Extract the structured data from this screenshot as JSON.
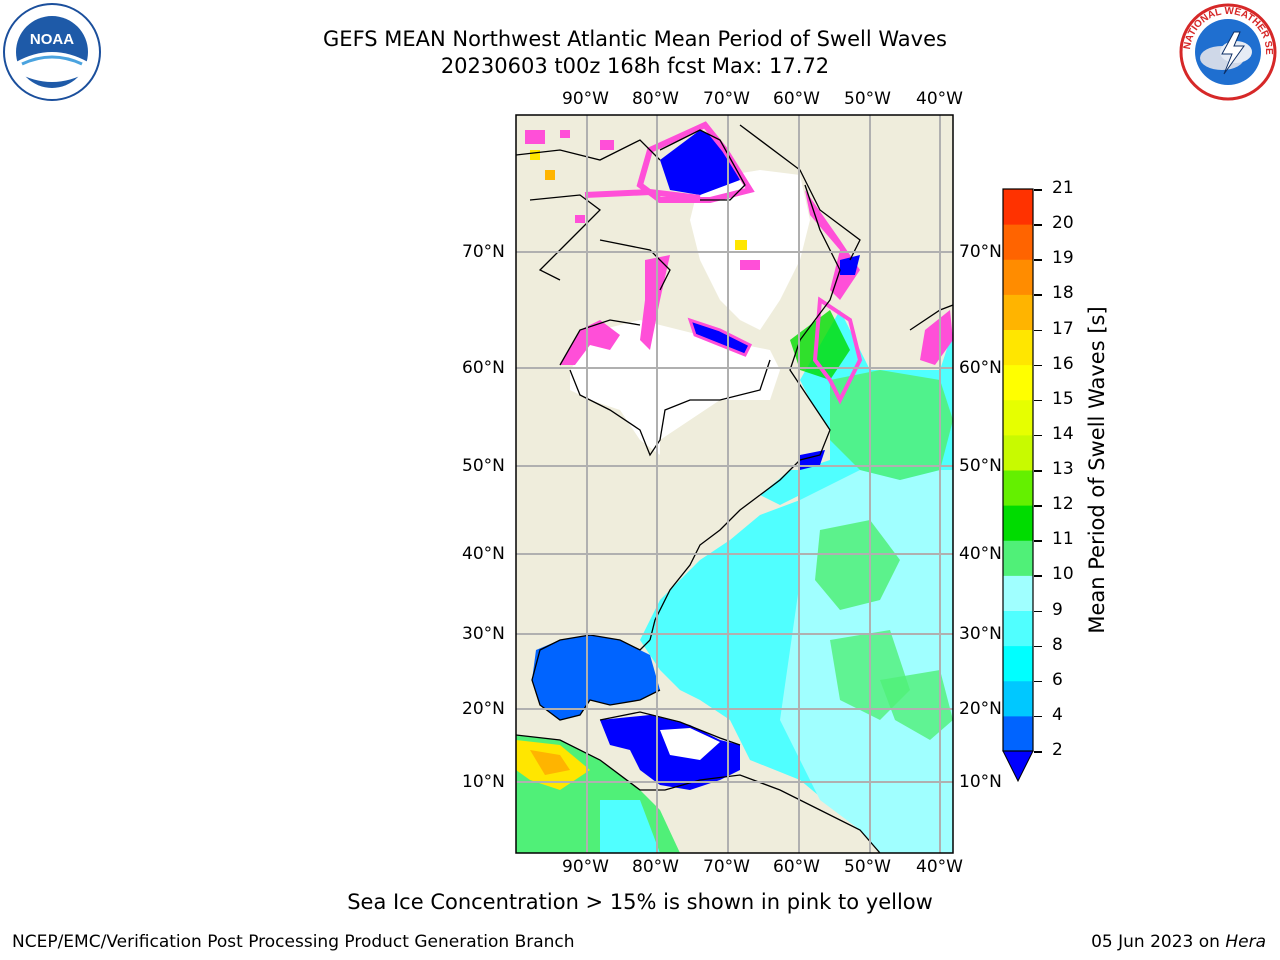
{
  "header": {
    "title_line1": "GEFS MEAN Northwest Atlantic Mean Period of Swell Waves",
    "title_line2": "20230603 t00z 168h fcst   Max: 17.72"
  },
  "logos": {
    "left": {
      "name": "noaa-logo",
      "text": "NOAA"
    },
    "right": {
      "name": "nws-logo",
      "text": "NATIONAL WEATHER SERVICE"
    }
  },
  "map": {
    "lon_labels": [
      "90°W",
      "80°W",
      "70°W",
      "60°W",
      "50°W",
      "40°W"
    ],
    "lat_labels": [
      "70°N",
      "60°N",
      "50°N",
      "40°N",
      "30°N",
      "20°N",
      "10°N"
    ],
    "colors": {
      "land": "#efeddc",
      "ice_free": "#ffffff",
      "grid": "#b0b0b0"
    }
  },
  "colorbar": {
    "title": "Mean Period of Swell Waves [s]",
    "ticks": [
      "2",
      "4",
      "6",
      "8",
      "9",
      "10",
      "11",
      "12",
      "13",
      "14",
      "15",
      "16",
      "17",
      "18",
      "19",
      "20",
      "21"
    ],
    "colors": [
      "#0064ff",
      "#00c8ff",
      "#00ffff",
      "#50ffff",
      "#a0ffff",
      "#50f078",
      "#00dc00",
      "#64f000",
      "#c8fa00",
      "#e6ff00",
      "#ffff00",
      "#ffe600",
      "#ffb400",
      "#ff8c00",
      "#ff6400",
      "#ff3200",
      "#ff0000"
    ],
    "extend_color": "#0000ff"
  },
  "caption": "Sea Ice Concentration > 15% is shown in pink to yellow",
  "footer": {
    "left": "NCEP/EMC/Verification Post Processing Product Generation Branch",
    "right_date": "05 Jun 2023 on ",
    "right_host": "Hera"
  }
}
